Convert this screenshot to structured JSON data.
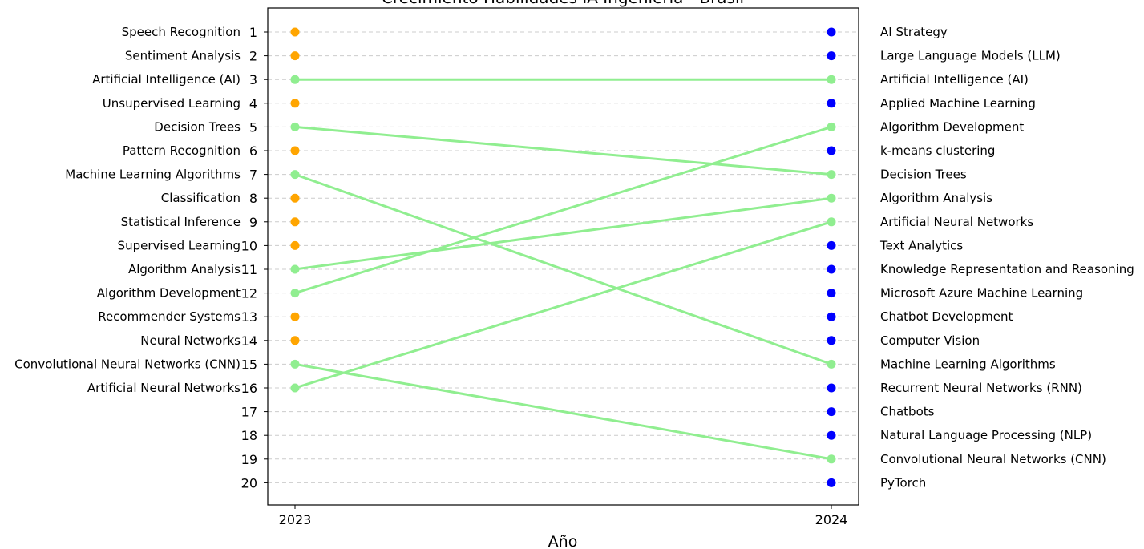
{
  "chart_data": {
    "type": "line",
    "title": "Crecimiento Habilidades IA Ingeniería - Brasil",
    "xlabel": "Año",
    "ylabel": "",
    "x_ticks": [
      "2023",
      "2024"
    ],
    "y_ticks": [
      1,
      2,
      3,
      4,
      5,
      6,
      7,
      8,
      9,
      10,
      11,
      12,
      13,
      14,
      15,
      16,
      17,
      18,
      19,
      20
    ],
    "y_inverted": true,
    "grid": "horizontal dashed",
    "left_labels": [
      "Speech Recognition",
      "Sentiment Analysis",
      "Artificial Intelligence (AI)",
      "Unsupervised Learning",
      "Decision Trees",
      "Pattern Recognition",
      "Machine Learning Algorithms",
      "Classification",
      "Statistical Inference",
      "Supervised Learning",
      "Algorithm Analysis",
      "Algorithm Development",
      "Recommender Systems",
      "Neural Networks",
      "Convolutional Neural Networks (CNN)",
      "Artificial Neural Networks"
    ],
    "right_labels": [
      "AI Strategy",
      "Large Language Models (LLM)",
      "Artificial Intelligence (AI)",
      "Applied Machine Learning",
      "Algorithm Development",
      "k-means clustering",
      "Decision Trees",
      "Algorithm Analysis",
      "Artificial Neural Networks",
      "Text Analytics",
      "Knowledge Representation and Reasoning",
      "Microsoft Azure Machine Learning",
      "Chatbot Development",
      "Computer Vision",
      "Machine Learning Algorithms",
      "Recurrent Neural Networks (RNN)",
      "Chatbots",
      "Natural Language Processing (NLP)",
      "Convolutional Neural Networks (CNN)",
      "PyTorch"
    ],
    "colors": {
      "rank_2023_only": "#ffa500",
      "rank_2024_only": "#0000ff",
      "common": "#90ee90",
      "grid": "#cccccc"
    },
    "connections": [
      {
        "skill": "Artificial Intelligence (AI)",
        "rank_2023": 3,
        "rank_2024": 3
      },
      {
        "skill": "Decision Trees",
        "rank_2023": 5,
        "rank_2024": 7
      },
      {
        "skill": "Machine Learning Algorithms",
        "rank_2023": 7,
        "rank_2024": 15
      },
      {
        "skill": "Algorithm Analysis",
        "rank_2023": 11,
        "rank_2024": 8
      },
      {
        "skill": "Algorithm Development",
        "rank_2023": 12,
        "rank_2024": 5
      },
      {
        "skill": "Convolutional Neural Networks (CNN)",
        "rank_2023": 15,
        "rank_2024": 19
      },
      {
        "skill": "Artificial Neural Networks",
        "rank_2023": 16,
        "rank_2024": 9
      }
    ]
  }
}
